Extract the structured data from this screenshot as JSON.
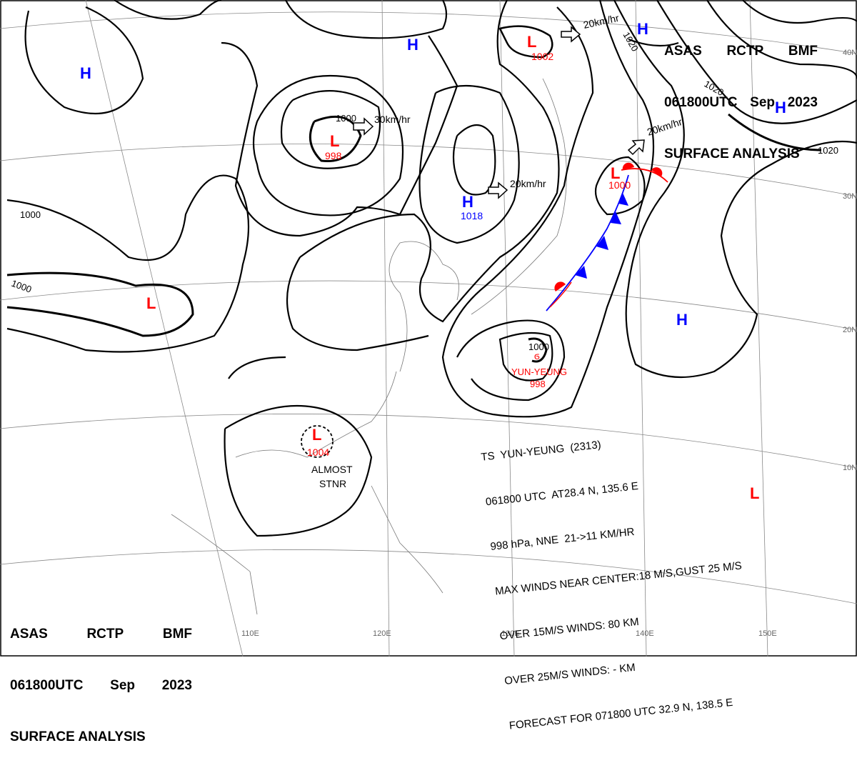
{
  "header": {
    "line1": [
      "ASAS",
      "RCTP",
      "BMF"
    ],
    "line2": [
      "061800UTC",
      "Sep",
      "2023"
    ],
    "line3": "SURFACE ANALYSIS"
  },
  "latitude_labels": [
    "40N",
    "30N",
    "20N",
    "10N"
  ],
  "longitude_labels": [
    "110E",
    "120E",
    "130E",
    "140E",
    "150E"
  ],
  "pressure_centers": [
    {
      "type": "H",
      "color": "#0000ff"
    },
    {
      "type": "H",
      "color": "#0000ff"
    },
    {
      "type": "H",
      "color": "#0000ff"
    },
    {
      "type": "H",
      "color": "#0000ff"
    },
    {
      "type": "H",
      "value": "1018",
      "color": "#0000ff"
    },
    {
      "type": "H",
      "color": "#0000ff"
    },
    {
      "type": "L",
      "value": "998",
      "color": "#ff0000"
    },
    {
      "type": "L",
      "color": "#ff0000"
    },
    {
      "type": "L",
      "value": "1002",
      "color": "#ff0000"
    },
    {
      "type": "L",
      "value": "1000",
      "color": "#ff0000"
    },
    {
      "type": "L",
      "value": "1004",
      "color": "#ff0000",
      "note": "ALMOST\nSTNR"
    },
    {
      "type": "L",
      "color": "#ff0000"
    }
  ],
  "isobar_labels": [
    "1000",
    "1000",
    "1000",
    "1020",
    "1020",
    "1020",
    "1000"
  ],
  "movements": [
    "30km/hr",
    "20km/hr",
    "20km/hr",
    "20km/hr"
  ],
  "typhoon": {
    "isobar": "1000",
    "name": "YUN-YEUNG",
    "pressure": "998",
    "info": [
      "TS  YUN-YEUNG  (2313)",
      "061800 UTC  AT28.4 N, 135.6 E",
      "998 hPa, NNE  21->11 KM/HR",
      "MAX WINDS NEAR CENTER:18 M/S,GUST 25 M/S",
      "OVER 15M/S WINDS: 80 KM",
      "OVER 25M/S WINDS: - KM",
      "FORECAST FOR 071800 UTC 32.9 N, 138.5 E"
    ]
  },
  "colors": {
    "high": "#0000ff",
    "low": "#ff0000",
    "warm_front": "#ff0000",
    "cold_front": "#0000ff"
  }
}
